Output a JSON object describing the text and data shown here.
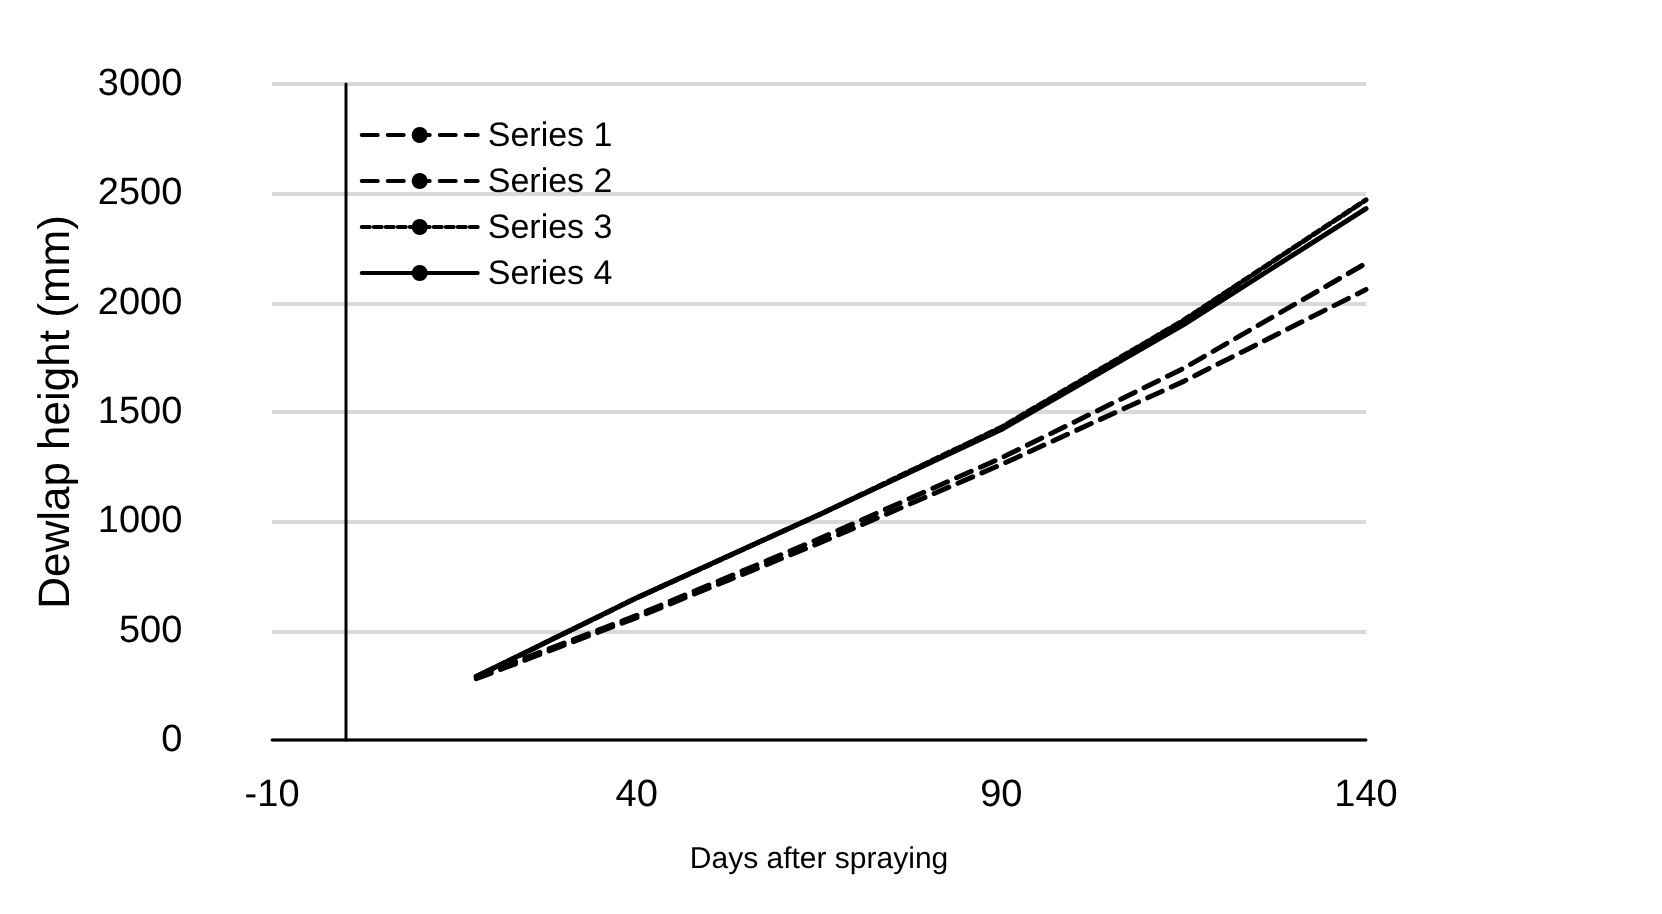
{
  "chart_data": {
    "type": "line",
    "xlabel": "Days after spraying",
    "ylabel": "Dewlap height (mm)",
    "x": [
      18,
      40,
      65,
      90,
      115,
      140
    ],
    "series": [
      {
        "name": "Series 1",
        "color": "#000000",
        "line_style": "dashed",
        "values": [
          290,
          570,
          920,
          1290,
          1700,
          2180
        ]
      },
      {
        "name": "Series 2",
        "color": "#000000",
        "line_style": "dashed",
        "values": [
          280,
          560,
          900,
          1260,
          1640,
          2060
        ]
      },
      {
        "name": "Series 3",
        "color": "#000000",
        "line_style": "dotted",
        "values": [
          290,
          650,
          1030,
          1430,
          1920,
          2470
        ]
      },
      {
        "name": "Series 4",
        "color": "#000000",
        "line_style": "solid",
        "values": [
          290,
          650,
          1030,
          1420,
          1900,
          2430
        ]
      }
    ],
    "xlim": [
      -10,
      140
    ],
    "xticks": [
      -10,
      40,
      90,
      140
    ],
    "ylim": [
      0,
      3000
    ],
    "yticks": [
      0,
      500,
      1000,
      1500,
      2000,
      2500,
      3000
    ],
    "grid": "y",
    "legend": "top left",
    "marker": "none"
  }
}
